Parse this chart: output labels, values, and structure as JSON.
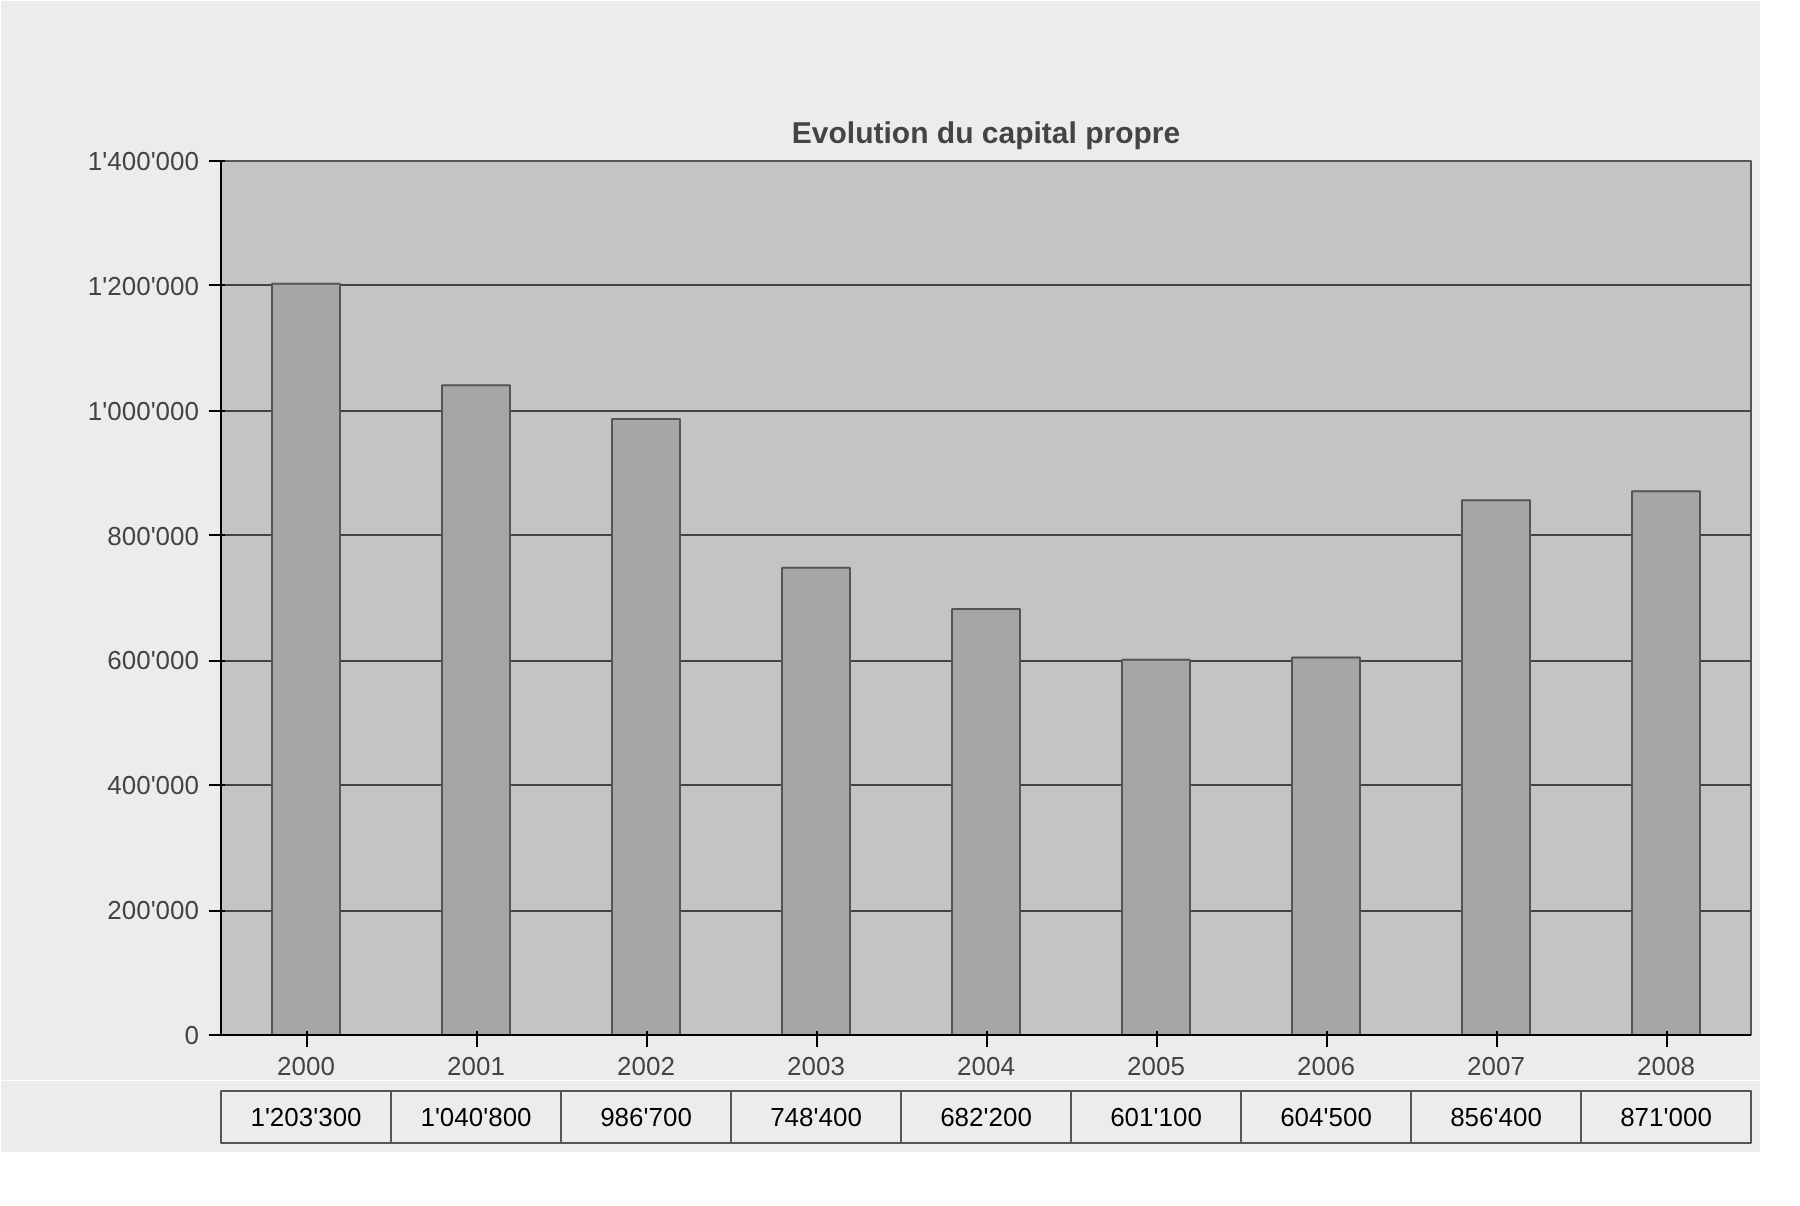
{
  "chart_data": {
    "type": "bar",
    "title": "Evolution du capital propre",
    "categories": [
      "2000",
      "2001",
      "2002",
      "2003",
      "2004",
      "2005",
      "2006",
      "2007",
      "2008"
    ],
    "values": [
      1203300,
      1040800,
      986700,
      748400,
      682200,
      601100,
      604500,
      856400,
      871000
    ],
    "value_labels": [
      "1'203'300",
      "1'040'800",
      "986'700",
      "748'400",
      "682'200",
      "601'100",
      "604'500",
      "856'400",
      "871'000"
    ],
    "color": "#a6a6a6",
    "ylim": [
      0,
      1400000
    ],
    "yticks": [
      0,
      {
        "value": 200000,
        "label": "200'000"
      },
      {
        "value": 400000,
        "label": "400'000"
      },
      {
        "value": 600000,
        "label": "600'000"
      },
      {
        "value": 800000,
        "label": "800'000"
      },
      {
        "value": 1000000,
        "label": "1'000'000"
      },
      {
        "value": 1200000,
        "label": "1'200'000"
      },
      {
        "value": 1400000,
        "label": "1'400'000"
      }
    ],
    "grid": "y"
  }
}
